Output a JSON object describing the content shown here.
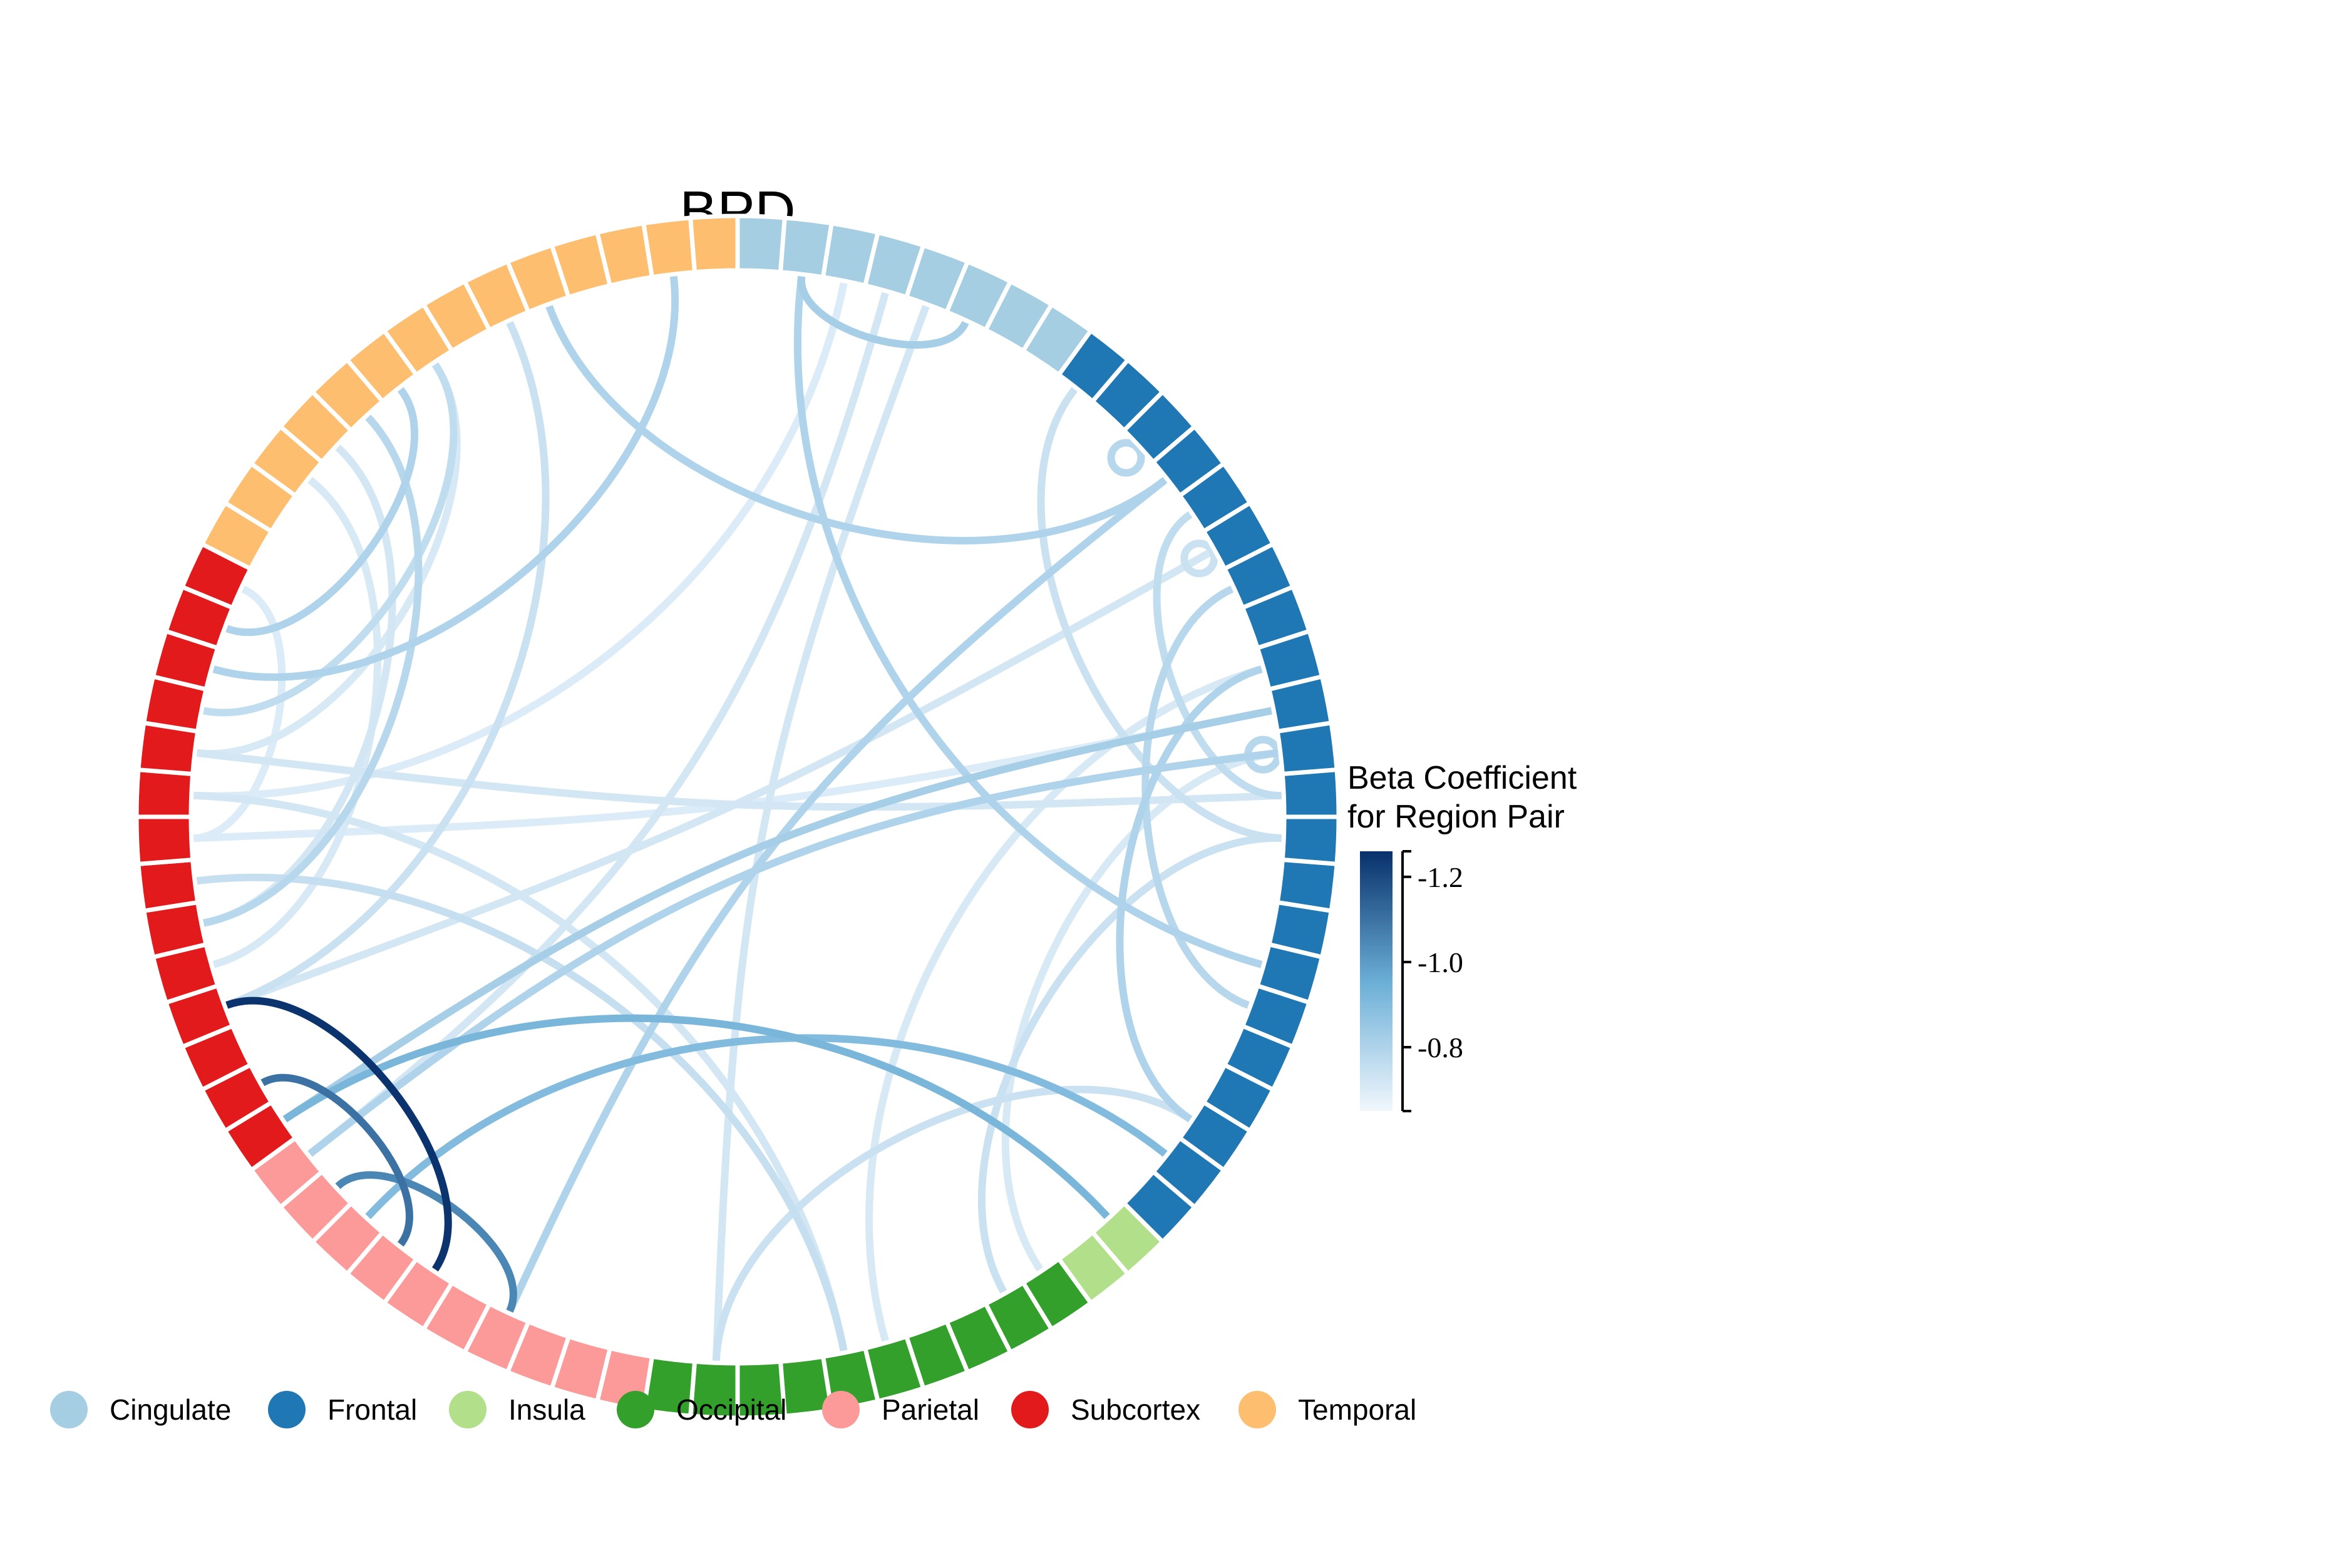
{
  "chart_data": {
    "type": "chord",
    "title": "BPD",
    "groups": [
      {
        "name": "Cingulate",
        "color": "#a6cee3",
        "segments": 8
      },
      {
        "name": "Frontal",
        "color": "#1f78b4",
        "segments": 22
      },
      {
        "name": "Insula",
        "color": "#b2df8a",
        "segments": 2
      },
      {
        "name": "Occipital",
        "color": "#33a02c",
        "segments": 10
      },
      {
        "name": "Parietal",
        "color": "#fb9a99",
        "segments": 10
      },
      {
        "name": "Subcortex",
        "color": "#e31a1c",
        "segments": 14
      },
      {
        "name": "Temporal",
        "color": "#fdbf6f",
        "segments": 14
      }
    ],
    "links": [
      {
        "from": 55,
        "to": 47,
        "value": -1.25
      },
      {
        "from": 53,
        "to": 48,
        "value": -1.1
      },
      {
        "from": 50,
        "to": 45,
        "value": -1.05
      },
      {
        "from": 52,
        "to": 30,
        "value": -0.92
      },
      {
        "from": 49,
        "to": 28,
        "value": -0.9
      },
      {
        "from": 1,
        "to": 5,
        "value": -0.82
      },
      {
        "from": 1,
        "to": 23,
        "value": -0.8
      },
      {
        "from": 91,
        "to": 75,
        "value": -0.8
      },
      {
        "from": 52,
        "to": 17,
        "value": -0.82
      },
      {
        "from": 51,
        "to": 18,
        "value": -0.8
      },
      {
        "from": 45,
        "to": 11,
        "value": -0.8
      },
      {
        "from": 16,
        "to": 27,
        "value": -0.8
      },
      {
        "from": 14,
        "to": 24,
        "value": -0.78
      },
      {
        "from": 78,
        "to": 63,
        "value": -0.8
      },
      {
        "from": 71,
        "to": 64,
        "value": -0.8
      },
      {
        "from": 70,
        "to": 57,
        "value": -0.78
      },
      {
        "from": 72,
        "to": 62,
        "value": -0.76
      },
      {
        "from": 12,
        "to": 19,
        "value": -0.76
      },
      {
        "from": 20,
        "to": 33,
        "value": -0.74
      },
      {
        "from": 27,
        "to": 40,
        "value": -0.74
      },
      {
        "from": 58,
        "to": 37,
        "value": -0.75
      },
      {
        "from": 88,
        "to": 20,
        "value": -0.74
      },
      {
        "from": 4,
        "to": 40,
        "value": -0.72
      },
      {
        "from": 3,
        "to": 51,
        "value": -0.72
      },
      {
        "from": 93,
        "to": 55,
        "value": -0.72
      },
      {
        "from": 99,
        "to": 61,
        "value": -0.72
      },
      {
        "from": 74,
        "to": 55,
        "value": -0.74
      },
      {
        "from": 60,
        "to": 37,
        "value": -0.72
      },
      {
        "from": 69,
        "to": 57,
        "value": -0.72
      },
      {
        "from": 68,
        "to": 56,
        "value": -0.71
      },
      {
        "from": 16,
        "to": 36,
        "value": -0.71
      },
      {
        "from": 18,
        "to": 32,
        "value": -0.71
      },
      {
        "from": 72,
        "to": 61,
        "value": -0.71
      },
      {
        "from": 65,
        "to": 59,
        "value": -0.7
      },
      {
        "from": 2,
        "to": 60,
        "value": -0.7
      },
      {
        "from": 97,
        "to": 59,
        "value": -0.7
      },
      {
        "from": 10,
        "to": 10,
        "value": -0.78
      },
      {
        "from": 18,
        "to": 18,
        "value": -0.78
      },
      {
        "from": 93,
        "to": 93,
        "value": -0.74
      }
    ],
    "legend_title_line1": "Beta Coefficient",
    "legend_title_line2": "for Region Pair",
    "colorbar": {
      "min": -1.26,
      "max": -0.65,
      "ticks": [
        "-1.2",
        "-1.0",
        "-0.8"
      ],
      "tick_values": [
        -1.2,
        -1.0,
        -0.8
      ],
      "color_light": "#f1f7fd",
      "color_mid": "#6aaed6",
      "color_dark": "#08306b"
    }
  }
}
